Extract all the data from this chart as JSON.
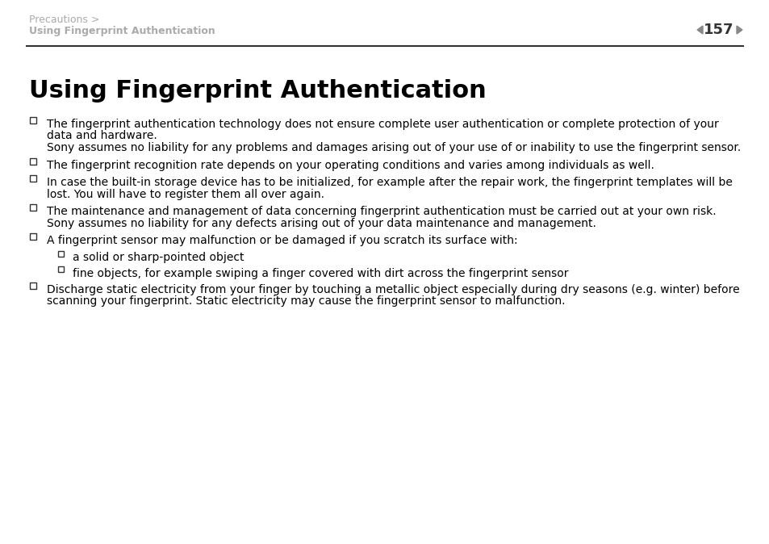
{
  "bg_color": "#ffffff",
  "header_line_color": "#000000",
  "breadcrumb_text": "Precautions >",
  "breadcrumb_sub": "Using Fingerprint Authentication",
  "page_number": "157",
  "page_arrow_color": "#888888",
  "title": "Using Fingerprint Authentication",
  "title_fontsize": 22,
  "breadcrumb_fontsize": 9,
  "page_num_fontsize": 13,
  "body_fontsize": 10,
  "body_color": "#000000",
  "header_text_color": "#aaaaaa",
  "bullet_items": [
    {
      "text": "The fingerprint authentication technology does not ensure complete user authentication or complete protection of your\ndata and hardware.\nSony assumes no liability for any problems and damages arising out of your use of or inability to use the fingerprint sensor.",
      "indent": 0
    },
    {
      "text": "The fingerprint recognition rate depends on your operating conditions and varies among individuals as well.",
      "indent": 0
    },
    {
      "text": "In case the built-in storage device has to be initialized, for example after the repair work, the fingerprint templates will be\nlost. You will have to register them all over again.",
      "indent": 0
    },
    {
      "text": "The maintenance and management of data concerning fingerprint authentication must be carried out at your own risk.\nSony assumes no liability for any defects arising out of your data maintenance and management.",
      "indent": 0
    },
    {
      "text": "A fingerprint sensor may malfunction or be damaged if you scratch its surface with:",
      "indent": 0
    },
    {
      "text": "a solid or sharp-pointed object",
      "indent": 1
    },
    {
      "text": "fine objects, for example swiping a finger covered with dirt across the fingerprint sensor",
      "indent": 1
    },
    {
      "text": "Discharge static electricity from your finger by touching a metallic object especially during dry seasons (e.g. winter) before\nscanning your fingerprint. Static electricity may cause the fingerprint sensor to malfunction.",
      "indent": 0
    }
  ]
}
